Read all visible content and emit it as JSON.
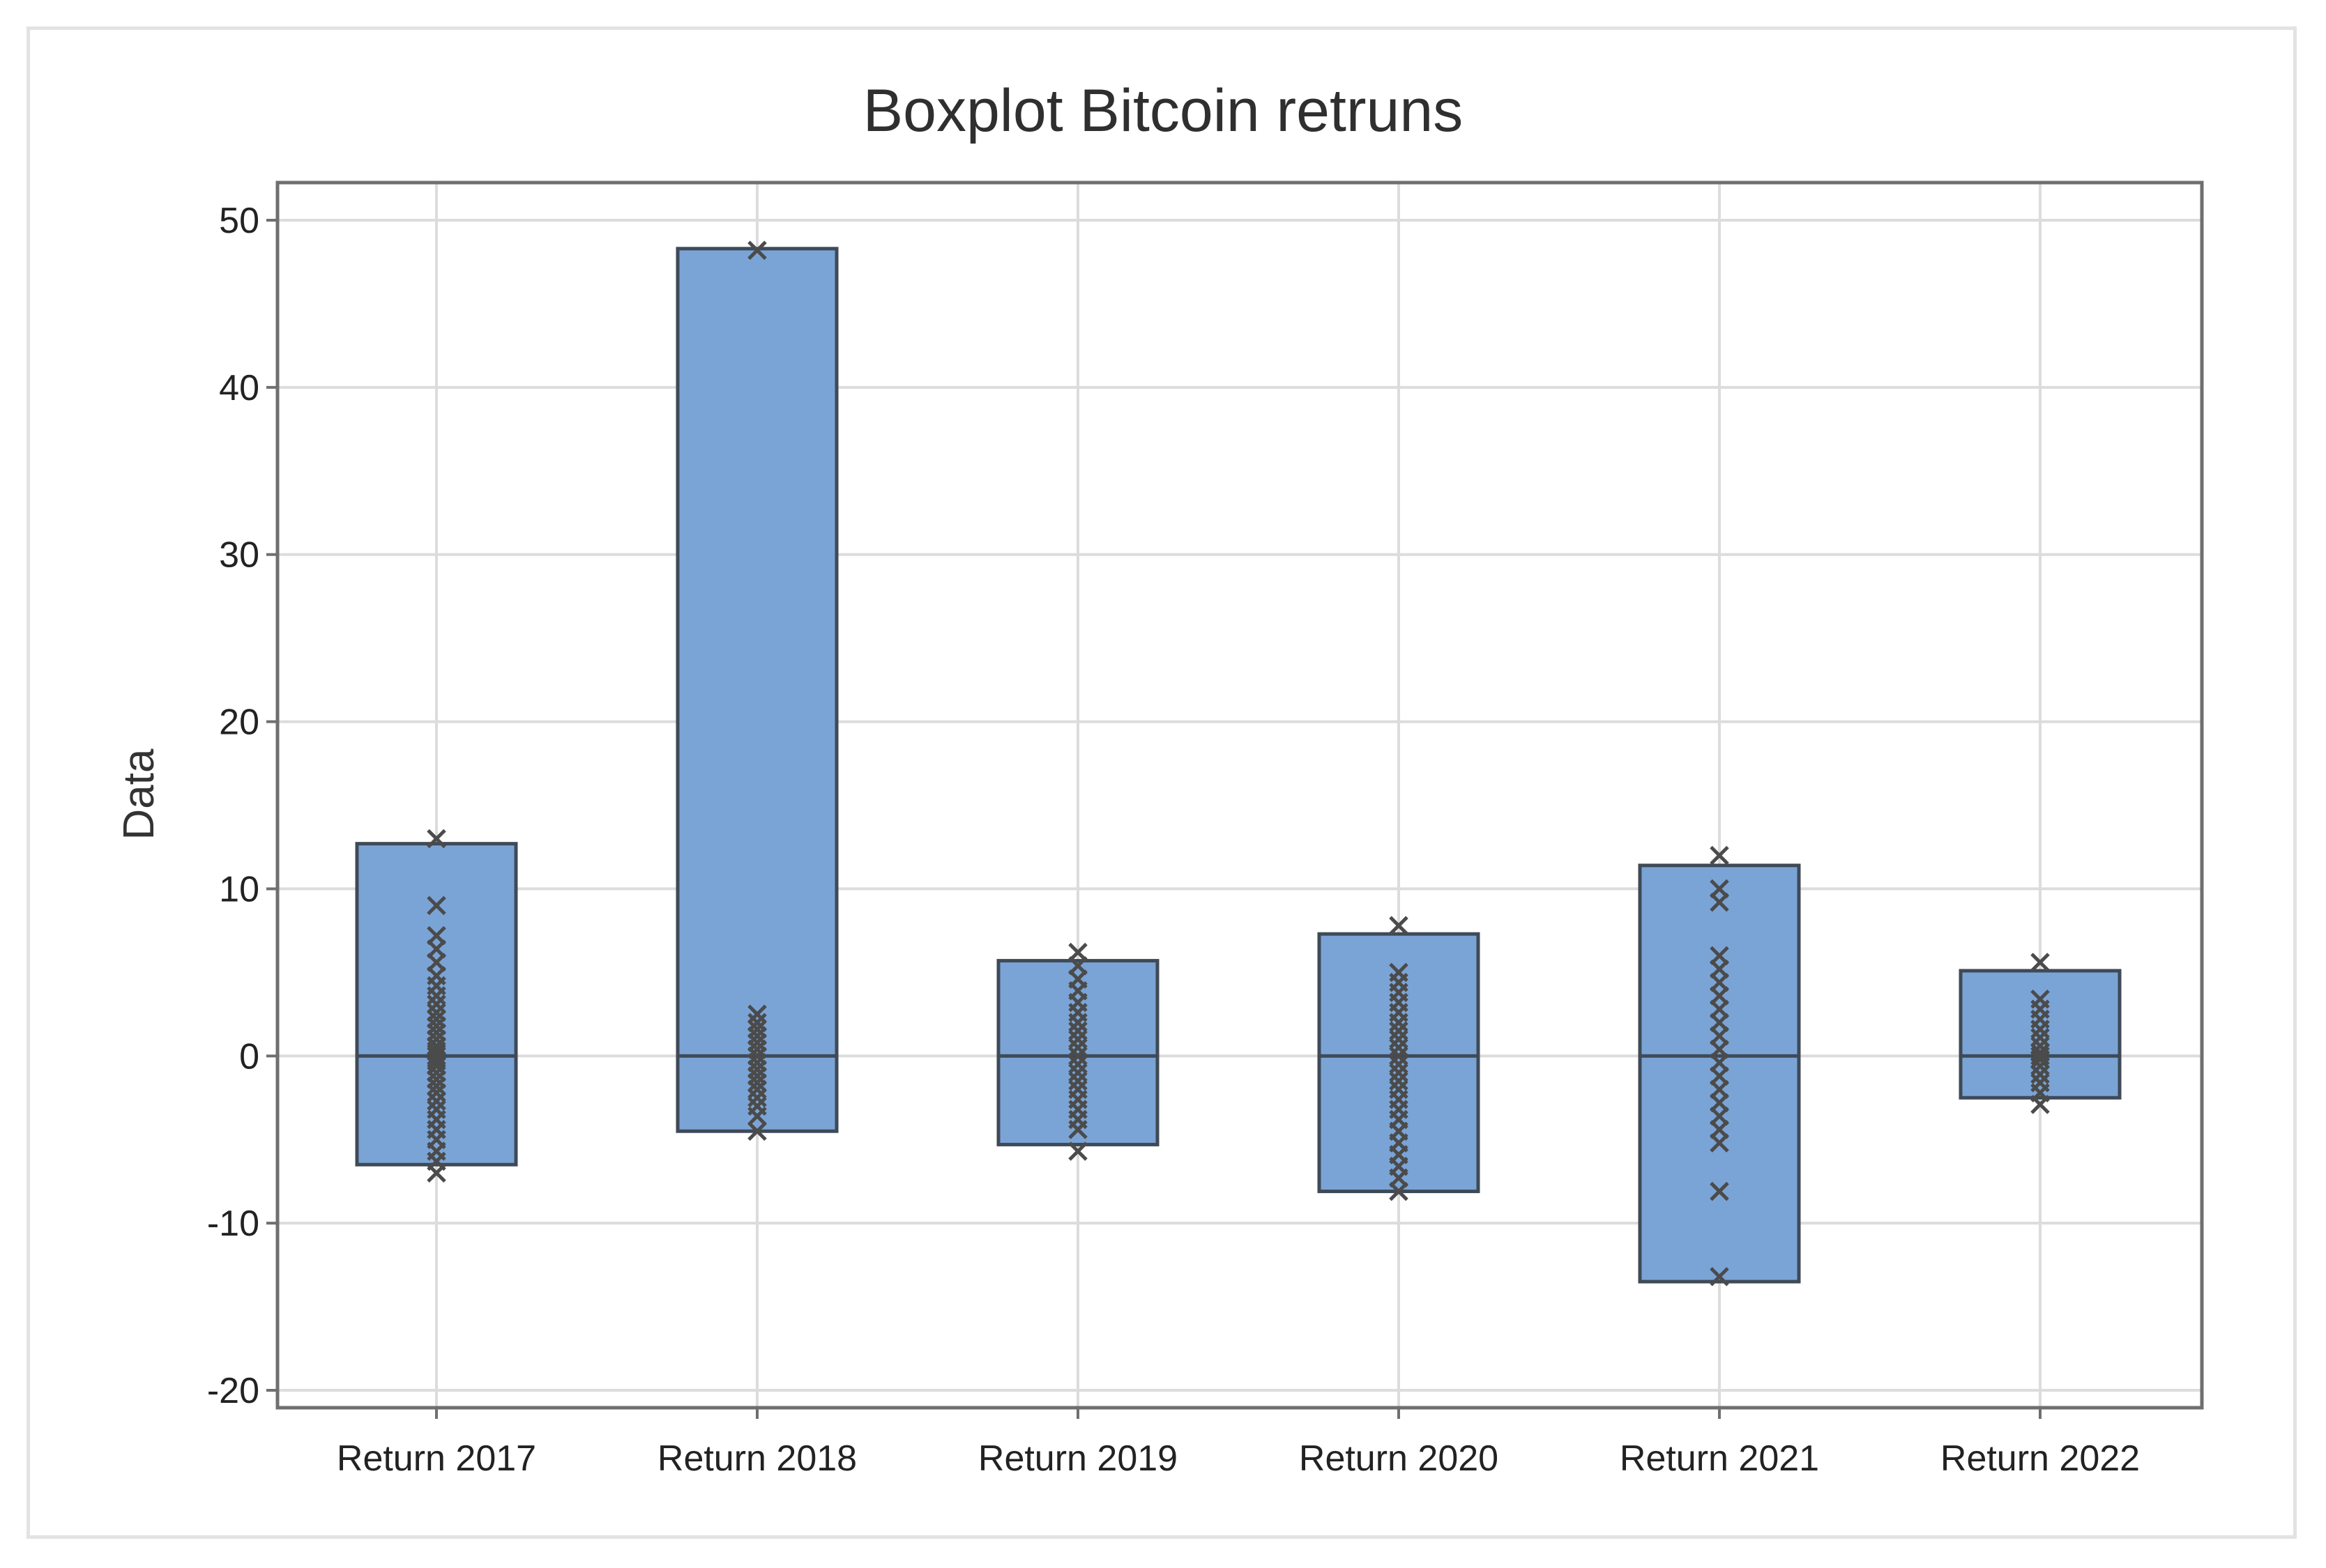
{
  "chart_data": {
    "type": "boxplot",
    "title": "Boxplot Bitcoin retruns",
    "ylabel": "Data",
    "xlabel": "",
    "ylim": [
      -20,
      50
    ],
    "yticks": [
      -20,
      -10,
      0,
      10,
      20,
      30,
      40,
      50
    ],
    "grid": true,
    "legend": "none",
    "categories": [
      "Return 2017",
      "Return 2018",
      "Return 2019",
      "Return 2020",
      "Return 2021",
      "Return 2022"
    ],
    "boxes": [
      {
        "name": "Return 2017",
        "box_low": -6.5,
        "box_high": 12.7,
        "median": 0,
        "points": [
          13,
          9,
          7.2,
          6.4,
          5.6,
          4.8,
          4.2,
          3.6,
          3.1,
          2.6,
          2.2,
          1.8,
          1.4,
          1.0,
          0.6,
          0.3,
          0,
          -0.3,
          -0.6,
          -1.0,
          -1.4,
          -1.8,
          -2.2,
          -2.7,
          -3.2,
          -3.8,
          -4.4,
          -5.0,
          -5.7,
          -6.3,
          -7
        ]
      },
      {
        "name": "Return 2018",
        "box_low": -4.5,
        "box_high": 48.3,
        "median": 0,
        "points": [
          48.2,
          2.5,
          2.0,
          1.6,
          1.2,
          0.8,
          0.4,
          0,
          -0.4,
          -0.8,
          -1.2,
          -1.6,
          -2.0,
          -2.5,
          -3.0,
          -3.6,
          -4.5
        ]
      },
      {
        "name": "Return 2019",
        "box_low": -5.3,
        "box_high": 5.7,
        "median": 0,
        "points": [
          6.2,
          5.4,
          4.6,
          3.9,
          3.2,
          2.6,
          2.0,
          1.5,
          1.0,
          0.5,
          0,
          -0.5,
          -1.0,
          -1.5,
          -2.0,
          -2.6,
          -3.2,
          -3.8,
          -4.4,
          -5.7
        ]
      },
      {
        "name": "Return 2020",
        "box_low": -8.1,
        "box_high": 7.3,
        "median": 0,
        "points": [
          7.8,
          5.0,
          4.4,
          3.8,
          3.2,
          2.6,
          2.0,
          1.5,
          1.0,
          0.5,
          0,
          -0.5,
          -1.0,
          -1.5,
          -2.0,
          -2.6,
          -3.2,
          -3.8,
          -4.5,
          -5.2,
          -5.9,
          -6.6,
          -7.3,
          -8.1
        ]
      },
      {
        "name": "Return 2021",
        "box_low": -13.5,
        "box_high": 11.4,
        "median": 0,
        "points": [
          12.0,
          10.0,
          9.2,
          6.0,
          5.2,
          4.4,
          3.6,
          2.8,
          2.0,
          1.2,
          0.4,
          -0.4,
          -1.2,
          -2.0,
          -2.8,
          -3.6,
          -4.4,
          -5.2,
          -8.1,
          -13.2
        ]
      },
      {
        "name": "Return 2022",
        "box_low": -2.5,
        "box_high": 5.1,
        "median": 0,
        "points": [
          5.6,
          3.4,
          2.8,
          2.2,
          1.6,
          1.1,
          0.6,
          0.2,
          0,
          -0.2,
          -0.6,
          -1.1,
          -1.6,
          -2.2,
          -2.9
        ]
      }
    ]
  },
  "colors": {
    "box_fill": "#7ba4d6",
    "box_stroke": "#3f4a57",
    "point": "#4b4b4b",
    "grid": "#dcdcdc",
    "plot_border": "#6f6f6f"
  }
}
